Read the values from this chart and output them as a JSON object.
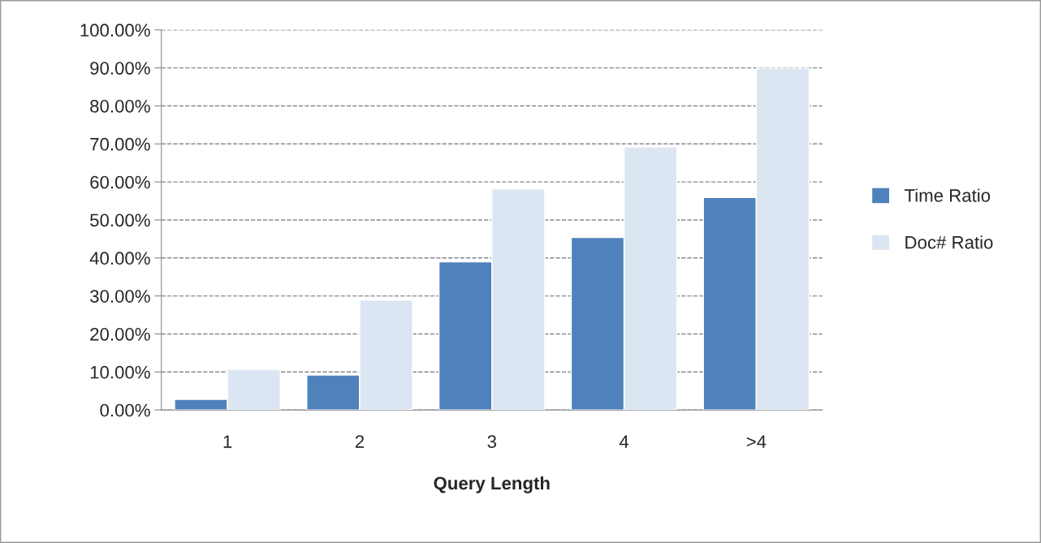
{
  "chart_data": {
    "type": "bar",
    "xlabel": "Query Length",
    "categories": [
      "1",
      "2",
      "3",
      "4",
      ">4"
    ],
    "series": [
      {
        "name": "Time Ratio",
        "color": "#4f81bd",
        "values": [
          2.8,
          9.2,
          39.0,
          45.4,
          55.9
        ]
      },
      {
        "name": "Doc# Ratio",
        "color": "#dce6f2",
        "values": [
          10.7,
          28.9,
          58.2,
          69.2,
          89.9
        ]
      }
    ],
    "ylim": [
      0,
      100
    ],
    "yticks": [
      {
        "value": 0,
        "label": "0.00%"
      },
      {
        "value": 10,
        "label": "10.00%"
      },
      {
        "value": 20,
        "label": "20.00%"
      },
      {
        "value": 30,
        "label": "30.00%"
      },
      {
        "value": 40,
        "label": "40.00%"
      },
      {
        "value": 50,
        "label": "50.00%"
      },
      {
        "value": 60,
        "label": "60.00%"
      },
      {
        "value": 70,
        "label": "70.00%"
      },
      {
        "value": 80,
        "label": "80.00%"
      },
      {
        "value": 90,
        "label": "90.00%"
      },
      {
        "value": 100,
        "label": "100.00%"
      }
    ],
    "grid": "y",
    "legend": "right"
  }
}
